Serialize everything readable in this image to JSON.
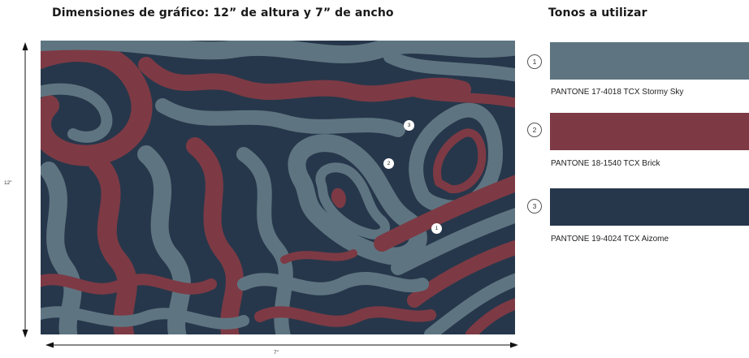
{
  "header": {
    "title": "Dimensiones de gráfico: 12”  de altura y 7” de ancho",
    "tones_title": "Tonos a utilizar"
  },
  "dimensions": {
    "height_label": "12\"",
    "width_label": "7\""
  },
  "palette": {
    "stormy_sky": "#5e7581",
    "brick": "#7d3a44",
    "aizome": "#27374b",
    "background": "#ffffff"
  },
  "swatches": [
    {
      "number": "1",
      "label": "PANTONE 17-4018 TCX Stormy Sky",
      "color": "#5e7581"
    },
    {
      "number": "2",
      "label": "PANTONE 18-1540 TCX Brick",
      "color": "#7d3a44"
    },
    {
      "number": "3",
      "label": "PANTONE 19-4024 TCX Aizome",
      "color": "#27374b"
    }
  ],
  "artwork_markers": [
    {
      "number": "1"
    },
    {
      "number": "2"
    },
    {
      "number": "3"
    }
  ]
}
